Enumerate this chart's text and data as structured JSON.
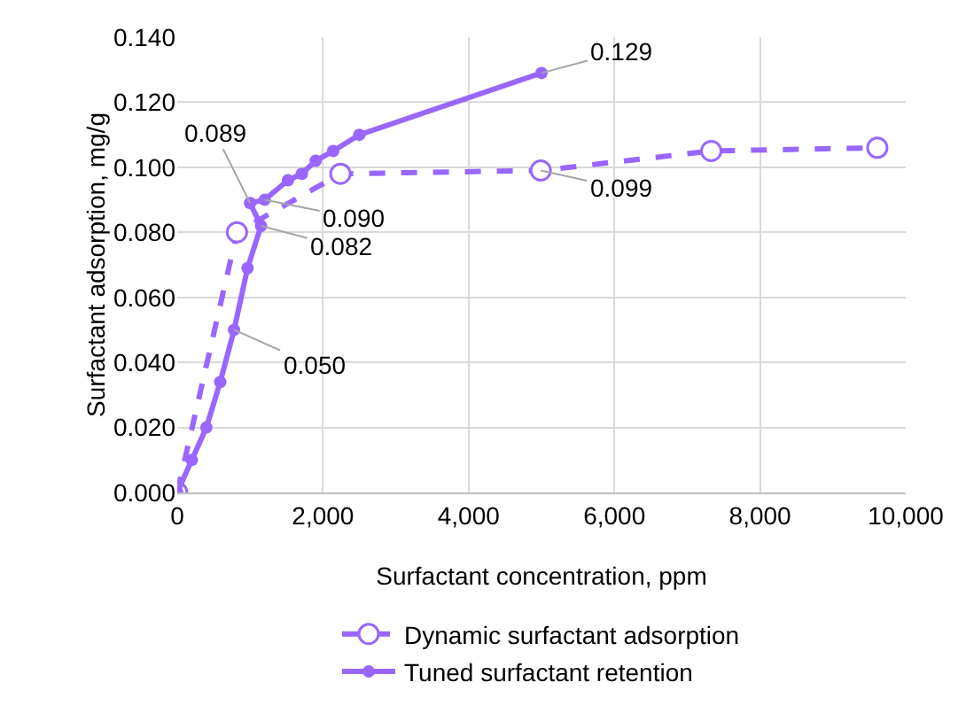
{
  "chart_data": {
    "type": "line",
    "xlabel": "Surfactant concentration, ppm",
    "ylabel": "Surfactant adsorption, mg/g",
    "xlim": [
      0,
      10000
    ],
    "xticks": [
      {
        "value": 0,
        "label": "0"
      },
      {
        "value": 2000,
        "label": "2,000"
      },
      {
        "value": 4000,
        "label": "4,000"
      },
      {
        "value": 6000,
        "label": "6,000"
      },
      {
        "value": 8000,
        "label": "8,000"
      },
      {
        "value": 10000,
        "label": "10,000"
      }
    ],
    "ylim": [
      0,
      0.14
    ],
    "yticks": [
      {
        "value": 0,
        "label": "0.000"
      },
      {
        "value": 0.02,
        "label": "0.020"
      },
      {
        "value": 0.04,
        "label": "0.040"
      },
      {
        "value": 0.06,
        "label": "0.060"
      },
      {
        "value": 0.08,
        "label": "0.080"
      },
      {
        "value": 0.1,
        "label": "0.100"
      },
      {
        "value": 0.12,
        "label": "0.120"
      },
      {
        "value": 0.14,
        "label": "0.140"
      }
    ],
    "grid": true,
    "legend": "bottom",
    "marker": "circle",
    "series": [
      {
        "name": "Dynamic surfactant adsorption",
        "color": "#9966ff",
        "line_style": "dashed",
        "x": [
          0,
          820,
          2240,
          4990,
          7330,
          9610
        ],
        "values": [
          0,
          0.08,
          0.098,
          0.099,
          0.105,
          0.106
        ]
      },
      {
        "name": "Tuned surfactant retention",
        "color": "#9966ff",
        "line_style": "solid",
        "x": [
          0,
          200,
          400,
          590,
          780,
          965,
          1150,
          1000,
          1200,
          1520,
          1710,
          1900,
          2140,
          2500,
          5000
        ],
        "values": [
          0,
          0.01,
          0.02,
          0.034,
          0.05,
          0.069,
          0.082,
          0.089,
          0.09,
          0.096,
          0.098,
          0.102,
          0.105,
          0.11,
          0.129
        ]
      }
    ],
    "annotations": [
      {
        "text": "0.129",
        "x": 5000,
        "y": 0.129
      },
      {
        "text": "0.089",
        "x": 1000,
        "y": 0.089
      },
      {
        "text": "0.090",
        "x": 1200,
        "y": 0.09
      },
      {
        "text": "0.082",
        "x": 1150,
        "y": 0.082
      },
      {
        "text": "0.050",
        "x": 780,
        "y": 0.05
      },
      {
        "text": "0.099",
        "x": 4990,
        "y": 0.099
      }
    ]
  }
}
